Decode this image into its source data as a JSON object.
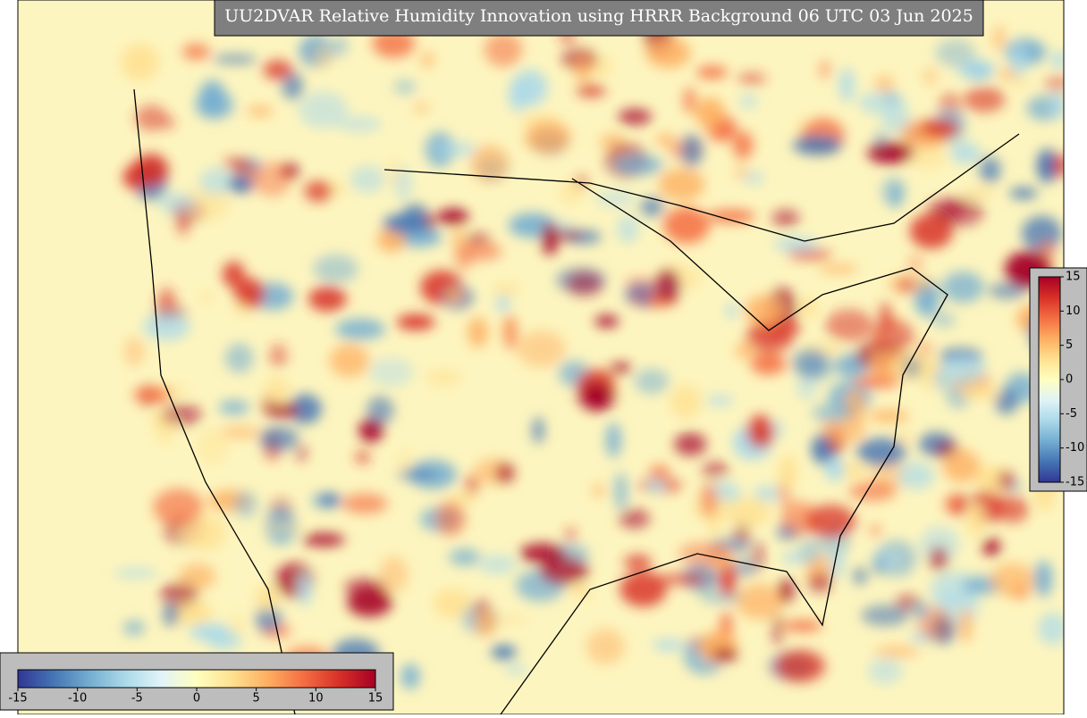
{
  "title": "UU2DVAR Relative Humidity Innovation using HRRR Background 06 UTC 03 Jun 2025",
  "colorbar_right": {
    "lim": [
      -15,
      15
    ],
    "ticks": [
      -15,
      -10,
      -5,
      0,
      5,
      10,
      15
    ]
  },
  "colorbar_bottom": {
    "lim": [
      -15,
      15
    ],
    "ticks": [
      -15,
      -10,
      -5,
      0,
      5,
      10,
      15
    ]
  }
}
